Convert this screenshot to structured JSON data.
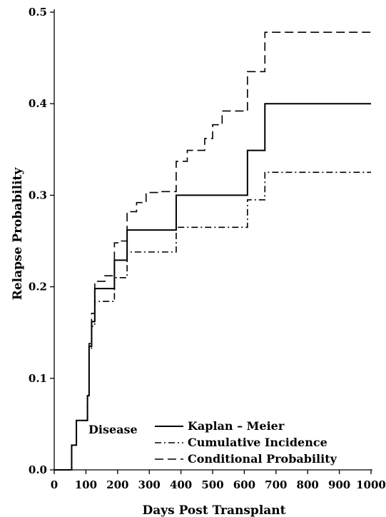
{
  "chart_data": {
    "type": "line",
    "title": "",
    "xlabel": "Days Post Transplant",
    "ylabel": "Relapse Probability",
    "xlim": [
      0,
      1000
    ],
    "ylim": [
      0,
      0.5
    ],
    "xticks": [
      0,
      100,
      200,
      300,
      400,
      500,
      600,
      700,
      800,
      900,
      1000
    ],
    "yticks": [
      0.0,
      0.1,
      0.2,
      0.3,
      0.4,
      0.5
    ],
    "ytick_labels": [
      "0.0",
      "0.1",
      "0.2",
      "0.3",
      "0.4",
      "0.5"
    ],
    "grid": false,
    "legend_position": "bottom-center",
    "annotation": "Disease",
    "series": [
      {
        "name": "Kaplan – Meier",
        "style": "solid",
        "step": true,
        "x": [
          0,
          55,
          70,
          100,
          105,
          110,
          118,
          128,
          190,
          230,
          385,
          610,
          665,
          1000
        ],
        "y": [
          0,
          0.027,
          0.054,
          0.054,
          0.081,
          0.135,
          0.162,
          0.198,
          0.229,
          0.262,
          0.3,
          0.349,
          0.4,
          0.4
        ]
      },
      {
        "name": "Cumulative Incidence",
        "style": "dashdot",
        "step": true,
        "x": [
          0,
          55,
          70,
          100,
          105,
          110,
          118,
          128,
          190,
          230,
          385,
          610,
          665,
          1000
        ],
        "y": [
          0,
          0.027,
          0.054,
          0.054,
          0.081,
          0.132,
          0.157,
          0.184,
          0.21,
          0.238,
          0.265,
          0.295,
          0.325,
          0.325
        ]
      },
      {
        "name": "Conditional Probability",
        "style": "dashed",
        "step": true,
        "x": [
          0,
          55,
          70,
          100,
          105,
          110,
          118,
          128,
          160,
          190,
          205,
          230,
          260,
          290,
          330,
          385,
          420,
          475,
          500,
          530,
          610,
          665,
          1000
        ],
        "y": [
          0,
          0.027,
          0.054,
          0.054,
          0.081,
          0.138,
          0.171,
          0.206,
          0.212,
          0.248,
          0.25,
          0.282,
          0.292,
          0.303,
          0.304,
          0.337,
          0.349,
          0.362,
          0.377,
          0.392,
          0.435,
          0.478,
          0.478
        ]
      }
    ]
  }
}
